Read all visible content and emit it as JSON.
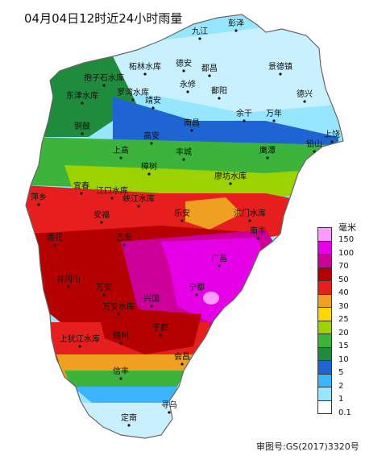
{
  "title": "04月04日12时近24小时雨量",
  "review_number": "审图号:GS(2017)3320号",
  "legend": {
    "unit": "毫米",
    "items": [
      {
        "label": "150",
        "color": "#ff9bff"
      },
      {
        "label": "100",
        "color": "#e600e6"
      },
      {
        "label": "70",
        "color": "#cc0099"
      },
      {
        "label": "50",
        "color": "#b40000"
      },
      {
        "label": "40",
        "color": "#e61e1e"
      },
      {
        "label": "30",
        "color": "#f0a020"
      },
      {
        "label": "25",
        "color": "#ffd700"
      },
      {
        "label": "20",
        "color": "#9bd200"
      },
      {
        "label": "15",
        "color": "#3cb43c"
      },
      {
        "label": "10",
        "color": "#1e8c3c"
      },
      {
        "label": "5",
        "color": "#1e64d2"
      },
      {
        "label": "2",
        "color": "#3cb4ff"
      },
      {
        "label": "1",
        "color": "#96e6ff"
      },
      {
        "label": "0.1",
        "color": "#ffffff"
      }
    ]
  },
  "places": [
    {
      "name": "九江"
    },
    {
      "name": "彭泽"
    },
    {
      "name": "德安"
    },
    {
      "name": "都昌"
    },
    {
      "name": "景德镇"
    },
    {
      "name": "柘林水库"
    },
    {
      "name": "永修"
    },
    {
      "name": "抱子石水库"
    },
    {
      "name": "罗湾水库"
    },
    {
      "name": "鄱阳"
    },
    {
      "name": "德兴"
    },
    {
      "name": "东津水库"
    },
    {
      "name": "靖安"
    },
    {
      "name": "余干"
    },
    {
      "name": "万年"
    },
    {
      "name": "铜鼓"
    },
    {
      "name": "南昌"
    },
    {
      "name": "上饶"
    },
    {
      "name": "高安"
    },
    {
      "name": "铅山"
    },
    {
      "name": "上高"
    },
    {
      "name": "丰城"
    },
    {
      "name": "鹰潭"
    },
    {
      "name": "樟树"
    },
    {
      "name": "廖坊水库"
    },
    {
      "name": "宜春"
    },
    {
      "name": "江口水库"
    },
    {
      "name": "萍乡"
    },
    {
      "name": "峡江水库"
    },
    {
      "name": "乐安"
    },
    {
      "name": "洪门水库"
    },
    {
      "name": "安福"
    },
    {
      "name": "南丰"
    },
    {
      "name": "莲花"
    },
    {
      "name": "吉安"
    },
    {
      "name": "广昌"
    },
    {
      "name": "井冈山"
    },
    {
      "name": "万安"
    },
    {
      "name": "宁都"
    },
    {
      "name": "兴国"
    },
    {
      "name": "万安水库"
    },
    {
      "name": "上犹江水库"
    },
    {
      "name": "赣州"
    },
    {
      "name": "于都"
    },
    {
      "name": "会昌"
    },
    {
      "name": "信丰"
    },
    {
      "name": "寻乌"
    },
    {
      "name": "定南"
    }
  ]
}
